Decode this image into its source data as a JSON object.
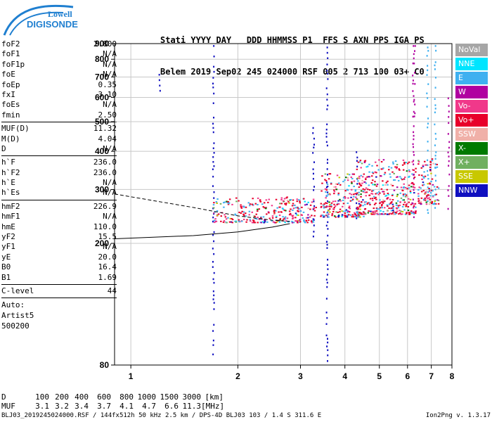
{
  "logo": {
    "top": "Lowell",
    "bottom": "DIGISONDE"
  },
  "header": {
    "line1": "Stati YYYY DAY   DDD HHMMSS P1  FFS S AXN PPS IGA PS",
    "line2": "Belem 2019 Sep02 245 024000 RSF 005 2 713 100 03+ C0"
  },
  "params": {
    "group1": [
      {
        "label": "foF2",
        "value": "2.800"
      },
      {
        "label": "foF1",
        "value": "N/A"
      },
      {
        "label": "foF1p",
        "value": "N/A"
      },
      {
        "label": "foE",
        "value": "N/A"
      },
      {
        "label": "foEp",
        "value": "0.35"
      },
      {
        "label": "fxI",
        "value": "3.10"
      },
      {
        "label": "foEs",
        "value": "N/A"
      },
      {
        "label": "fmin",
        "value": "2.50"
      }
    ],
    "group2": [
      {
        "label": "MUF(D)",
        "value": "11.32"
      },
      {
        "label": "M(D)",
        "value": "4.04"
      },
      {
        "label": "D",
        "value": "N/A"
      }
    ],
    "group3": [
      {
        "label": "h`F",
        "value": "236.0"
      },
      {
        "label": "h`F2",
        "value": "236.0"
      },
      {
        "label": "h`E",
        "value": "N/A"
      },
      {
        "label": "h`Es",
        "value": "N/A"
      }
    ],
    "group4": [
      {
        "label": "hmF2",
        "value": "226.9"
      },
      {
        "label": "hmF1",
        "value": "N/A"
      },
      {
        "label": "hmE",
        "value": "110.0"
      },
      {
        "label": "yF2",
        "value": "15.5"
      },
      {
        "label": "yF1",
        "value": "N/A"
      },
      {
        "label": "yE",
        "value": "20.0"
      },
      {
        "label": "B0",
        "value": "16.4"
      },
      {
        "label": "B1",
        "value": "1.69"
      }
    ],
    "clevel": {
      "label": "C-level",
      "value": "44"
    },
    "auto": [
      "Auto:",
      "Artist5",
      "500200"
    ]
  },
  "legend": [
    {
      "label": "NoVal",
      "color": "#a6a6a6"
    },
    {
      "label": "NNE",
      "color": "#00e5ff"
    },
    {
      "label": "E",
      "color": "#3fb0f0"
    },
    {
      "label": "W",
      "color": "#b000a0"
    },
    {
      "label": "Vo-",
      "color": "#f0388a"
    },
    {
      "label": "Vo+",
      "color": "#e8002a"
    },
    {
      "label": "SSW",
      "color": "#f0b0a8"
    },
    {
      "label": "X-",
      "color": "#007a00"
    },
    {
      "label": "X+",
      "color": "#70b060"
    },
    {
      "label": "SSE",
      "color": "#c8c800"
    },
    {
      "label": "NNW",
      "color": "#1010c0"
    }
  ],
  "muf_table": {
    "d_label": "D",
    "muf_label": "MUF",
    "d": [
      "100",
      "200",
      "400",
      "600",
      "800",
      "1000",
      "1500",
      "3000",
      "[km]"
    ],
    "muf": [
      "3.1",
      "3.2",
      "3.4",
      "3.7",
      "4.1",
      "4.7",
      "6.6",
      "11.3",
      "[MHz]"
    ]
  },
  "footer": {
    "left": "BLJ03_2019245024000.RSF / 144fx512h 50 kHz 2.5 km / DPS-4D BLJ03 103 / 1.4 S 311.6 E",
    "right": "Ion2Png v. 1.3.17"
  },
  "chart_data": {
    "type": "scatter",
    "title": "",
    "xlabel": "",
    "ylabel": "",
    "xlim": [
      0.9,
      8.0
    ],
    "ylim": [
      80,
      900
    ],
    "yscale": "log",
    "x_ticks": [
      1,
      2,
      3,
      4,
      5,
      6,
      7,
      8
    ],
    "y_ticks": [
      80,
      200,
      300,
      400,
      500,
      600,
      700,
      800,
      900
    ],
    "grid": true,
    "legend_position": "right",
    "vertical_traces": [
      {
        "x": 1.2,
        "y_from": 630,
        "y_to": 750,
        "class": "NNW"
      },
      {
        "x": 1.7,
        "y_from": 85,
        "y_to": 890,
        "class": "NNW"
      },
      {
        "x": 3.25,
        "y_from": 210,
        "y_to": 480,
        "class": "NNW"
      },
      {
        "x": 3.55,
        "y_from": 80,
        "y_to": 880,
        "class": "NNW"
      },
      {
        "x": 4.3,
        "y_from": 240,
        "y_to": 400,
        "class": "NNW"
      },
      {
        "x": 6.2,
        "y_from": 240,
        "y_to": 890,
        "class": "W"
      },
      {
        "x": 6.25,
        "y_from": 520,
        "y_to": 890,
        "class": "W"
      },
      {
        "x": 6.8,
        "y_from": 250,
        "y_to": 880,
        "class": "E"
      },
      {
        "x": 7.15,
        "y_from": 260,
        "y_to": 890,
        "class": "E"
      },
      {
        "x": 7.8,
        "y_from": 260,
        "y_to": 600,
        "class": "W"
      }
    ],
    "trace_clusters": [
      {
        "x_from": 1.7,
        "x_to": 3.3,
        "y_from": 235,
        "y_to": 285
      },
      {
        "x_from": 3.4,
        "x_to": 4.5,
        "y_from": 245,
        "y_to": 340
      },
      {
        "x_from": 4.3,
        "x_to": 5.5,
        "y_from": 250,
        "y_to": 380
      },
      {
        "x_from": 5.5,
        "x_to": 6.3,
        "y_from": 250,
        "y_to": 380
      },
      {
        "x_from": 6.4,
        "x_to": 7.3,
        "y_from": 270,
        "y_to": 380
      }
    ],
    "profile_solid": [
      [
        0.9,
        207
      ],
      [
        1.5,
        212
      ],
      [
        2.0,
        218
      ],
      [
        2.5,
        226
      ],
      [
        2.8,
        232
      ]
    ],
    "profile_dashed": [
      [
        0.9,
        290
      ],
      [
        1.5,
        262
      ],
      [
        2.0,
        246
      ],
      [
        2.5,
        238
      ],
      [
        2.8,
        236
      ]
    ]
  }
}
